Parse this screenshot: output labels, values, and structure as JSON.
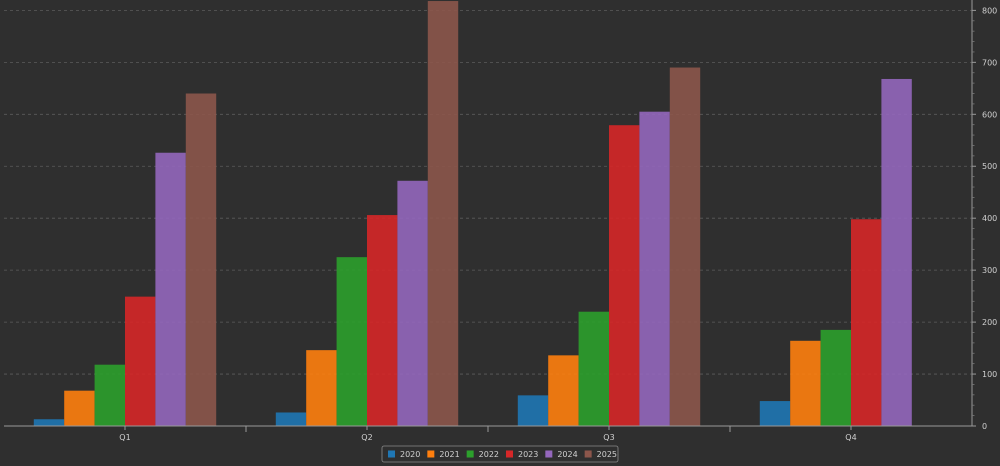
{
  "chart_data": {
    "type": "bar",
    "categories": [
      "Q1",
      "Q2",
      "Q3",
      "Q4"
    ],
    "series": [
      {
        "name": "2020",
        "color": "#1f77b4",
        "values": [
          13,
          26,
          59,
          48
        ]
      },
      {
        "name": "2021",
        "color": "#ff7f0e",
        "values": [
          68,
          146,
          136,
          164
        ]
      },
      {
        "name": "2022",
        "color": "#2ca02c",
        "values": [
          118,
          325,
          220,
          185
        ]
      },
      {
        "name": "2023",
        "color": "#d62728",
        "values": [
          249,
          406,
          579,
          398
        ]
      },
      {
        "name": "2024",
        "color": "#9467bd",
        "values": [
          526,
          472,
          605,
          668
        ]
      },
      {
        "name": "2025",
        "color": "#8c564b",
        "values": [
          640,
          818,
          690,
          null
        ]
      }
    ],
    "yticks": [
      0,
      100,
      200,
      300,
      400,
      500,
      600,
      700,
      800
    ],
    "ylim": [
      0,
      820
    ],
    "grid": true,
    "legend": "bottom-center",
    "y_axis_side": "right"
  }
}
